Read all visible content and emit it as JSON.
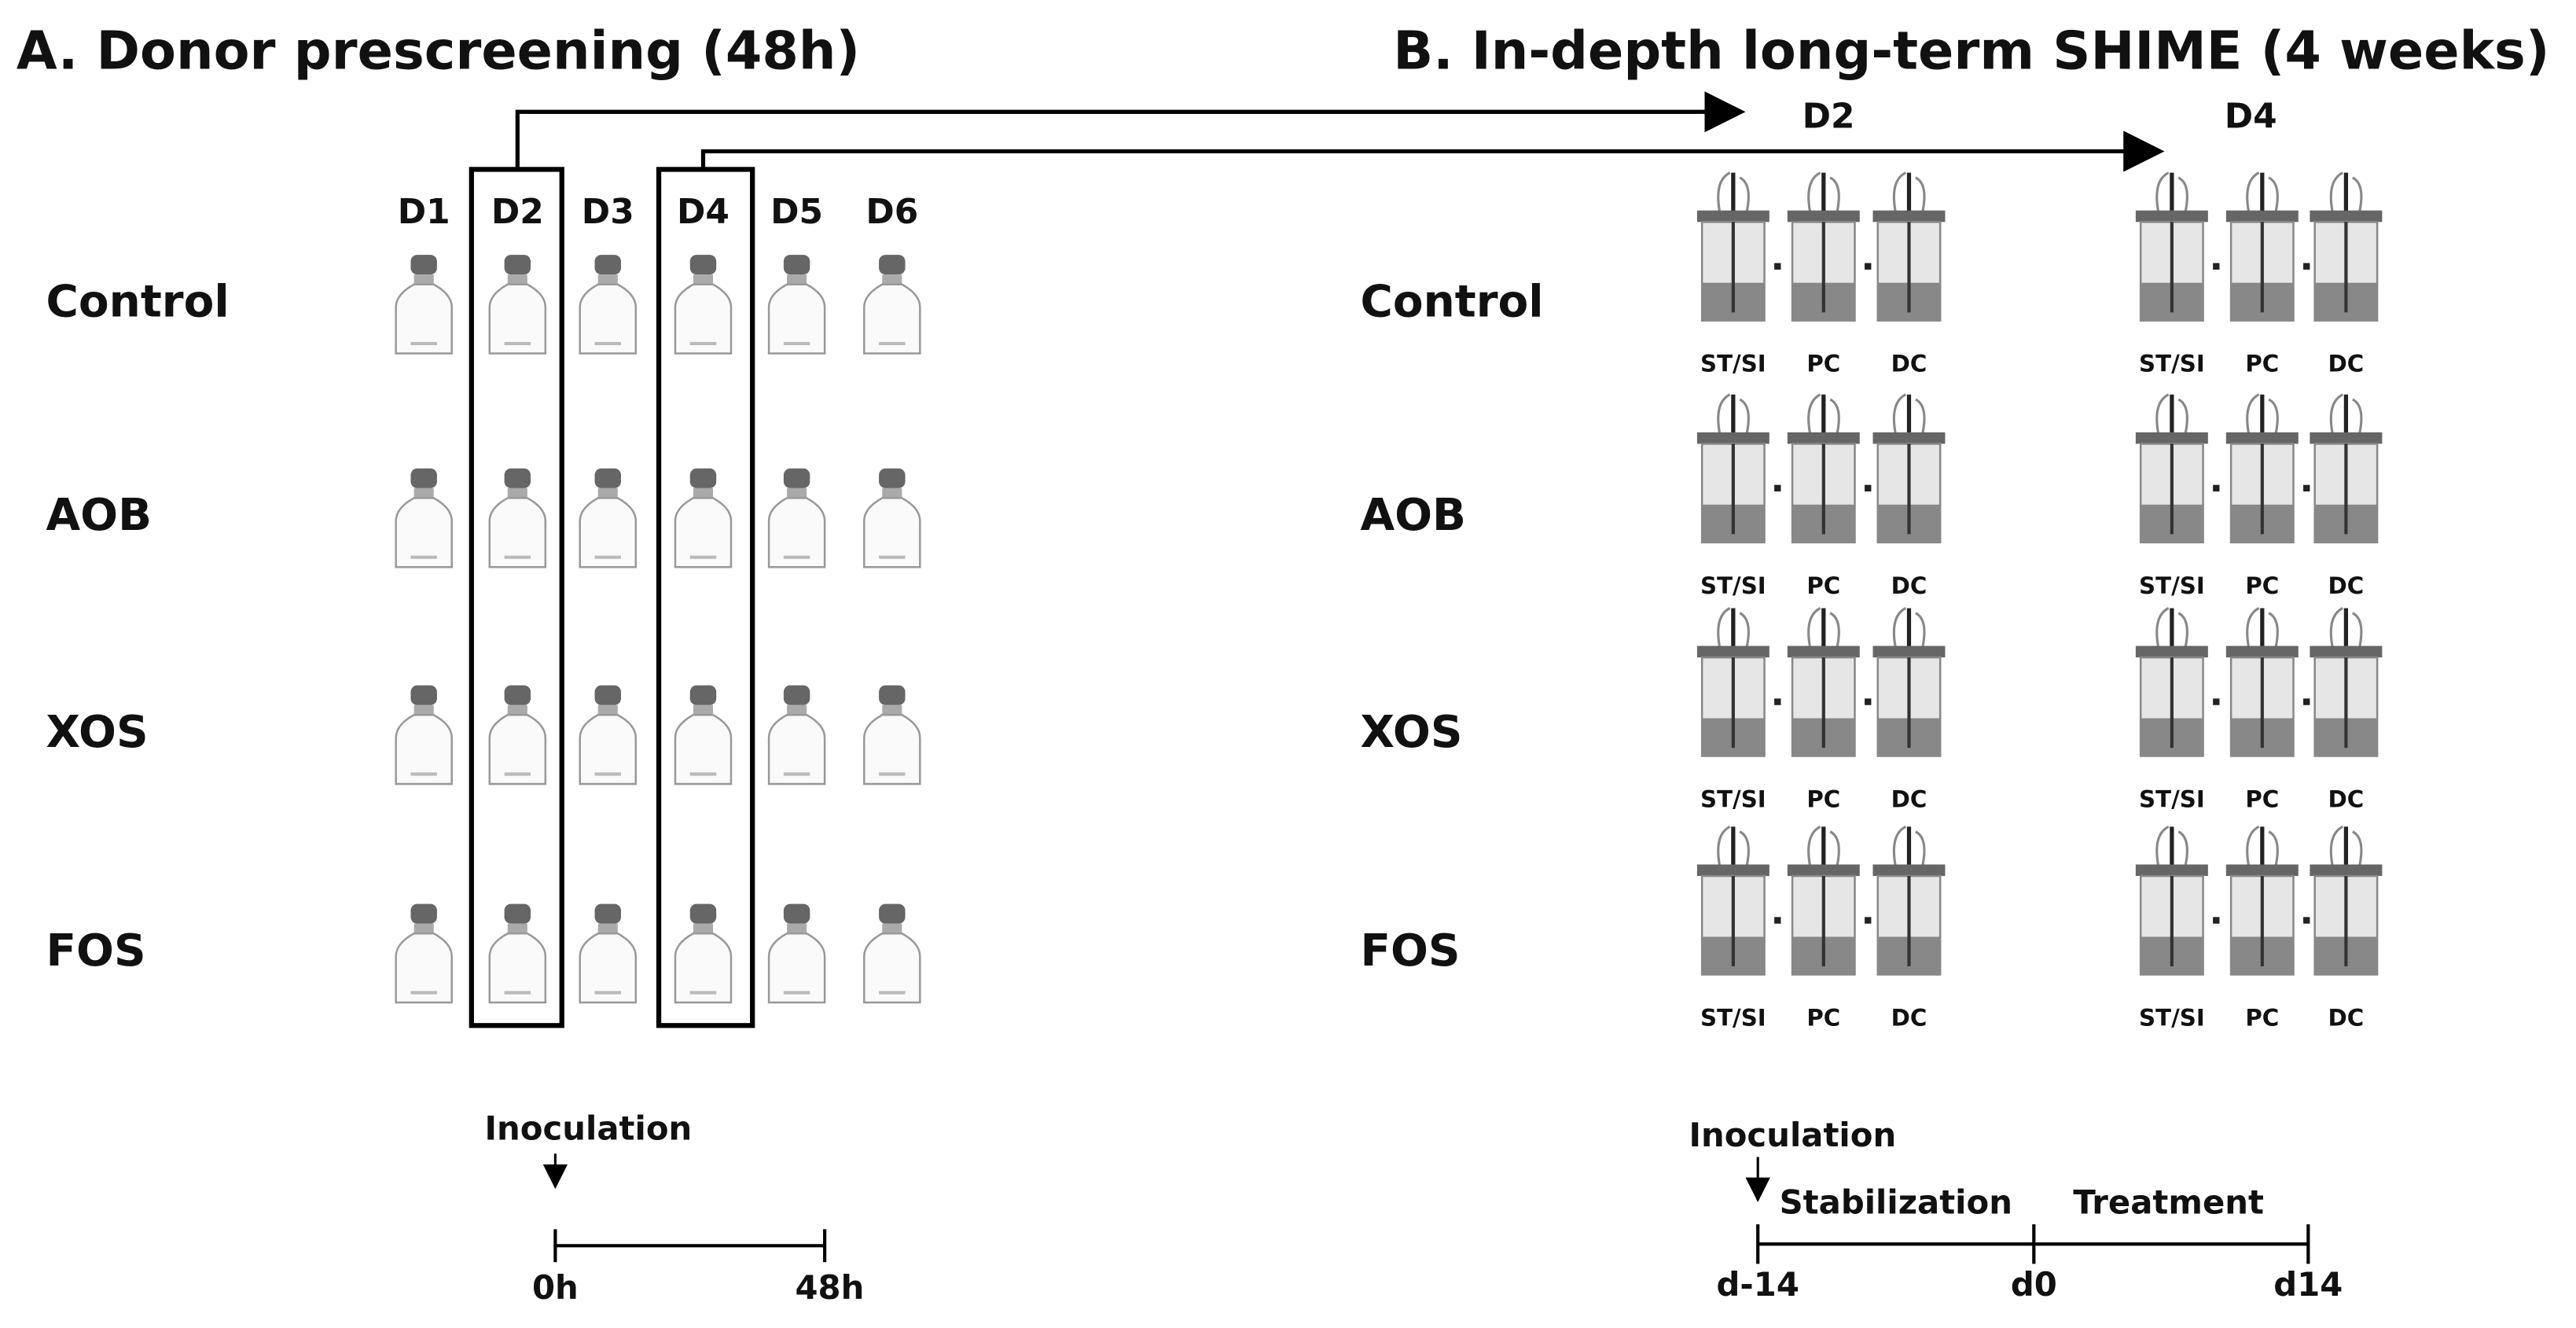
{
  "panel_a": {
    "title": "A. Donor prescreening (48h)",
    "donors": [
      "D1",
      "D2",
      "D3",
      "D4",
      "D5",
      "D6"
    ],
    "conditions": [
      "Control",
      "AOB",
      "XOS",
      "FOS"
    ],
    "timeline": {
      "event": "Inoculation",
      "ticks": [
        "0h",
        "48h"
      ]
    }
  },
  "panel_b": {
    "title": "B. In-depth long-term SHIME (4 weeks)",
    "donors": [
      "D2",
      "D4"
    ],
    "conditions": [
      "Control",
      "AOB",
      "XOS",
      "FOS"
    ],
    "compartments": [
      "ST/SI",
      "PC",
      "DC"
    ],
    "timeline": {
      "event": "Inoculation",
      "phases": [
        "Stabilization",
        "Treatment"
      ],
      "ticks": [
        "d-14",
        "d0",
        "d14"
      ]
    }
  }
}
